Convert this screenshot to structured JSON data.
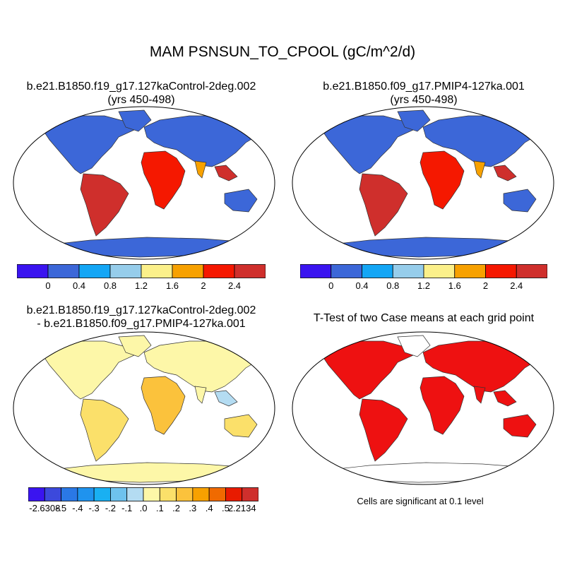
{
  "title": "MAM PSNSUN_TO_CPOOL (gC/m^2/d)",
  "panels": [
    {
      "title_line1": "b.e21.B1850.f19_g17.127kaControl-2deg.002",
      "title_line2": "(yrs 450-498)"
    },
    {
      "title_line1": "b.e21.B1850.f09_g17.PMIP4-127ka.001",
      "title_line2": "(yrs 450-498)"
    },
    {
      "title_line1": "b.e21.B1850.f19_g17.127kaControl-2deg.002",
      "title_line2": "- b.e21.B1850.f09_g17.PMIP4-127ka.001"
    },
    {
      "title_line1": "T-Test of two Case means at each grid point",
      "title_line2": ""
    }
  ],
  "colorbar_top_left": {
    "colors": [
      "#3a14f0",
      "#3c67d8",
      "#14a6f5",
      "#96cdeb",
      "#fbf08a",
      "#f7a100",
      "#f51800",
      "#cf2f2c"
    ],
    "labels": [
      "0",
      "0.4",
      "0.8",
      "1.2",
      "1.6",
      "2",
      "2.4"
    ]
  },
  "colorbar_top_right": {
    "colors": [
      "#3a14f0",
      "#3c67d8",
      "#14a6f5",
      "#96cdeb",
      "#fbf08a",
      "#f7a100",
      "#f51800",
      "#cf2f2c"
    ],
    "labels": [
      "0",
      "0.4",
      "0.8",
      "1.2",
      "1.6",
      "2",
      "2.4"
    ]
  },
  "colorbar_bottom": {
    "colors": [
      "#3a14f0",
      "#3c49dc",
      "#2a78e6",
      "#1f93ee",
      "#19b0f2",
      "#6ec2ee",
      "#b4dcf2",
      "#fdf7a8",
      "#fbe06a",
      "#fbc23c",
      "#f7a100",
      "#f06a00",
      "#e81b00",
      "#cf2f2c"
    ],
    "labels": [
      "-2.6308",
      "-.5",
      "-.4",
      "-.3",
      "-.2",
      "-.1",
      ".0",
      ".1",
      ".2",
      ".3",
      ".4",
      ".5",
      "2.2134"
    ]
  },
  "significance_note": "Cells are significant at 0.1 level"
}
